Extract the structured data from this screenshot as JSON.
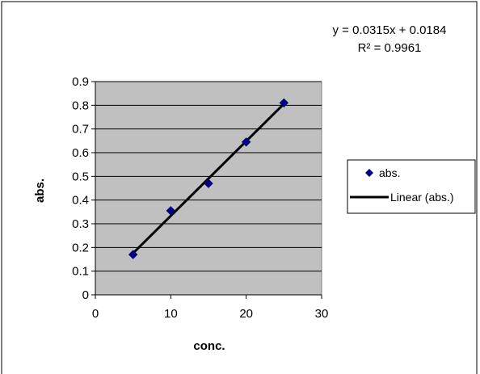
{
  "chart_data": {
    "type": "scatter",
    "title": "",
    "xlabel": "conc.",
    "ylabel": "abs.",
    "xlim": [
      0,
      30
    ],
    "ylim": [
      0,
      0.9
    ],
    "x_ticks": [
      "0",
      "10",
      "20",
      "30"
    ],
    "y_ticks": [
      "0",
      "0.1",
      "0.2",
      "0.3",
      "0.4",
      "0.5",
      "0.6",
      "0.7",
      "0.8",
      "0.9"
    ],
    "grid": "horizontal",
    "plot_background": "#c0c0c0",
    "legend_position": "right",
    "series": [
      {
        "name": "abs.",
        "marker": "diamond",
        "color": "#000080",
        "x": [
          5,
          10,
          15,
          20,
          25
        ],
        "y": [
          0.17,
          0.355,
          0.47,
          0.645,
          0.81
        ]
      }
    ],
    "trendline": {
      "name": "Linear (abs.)",
      "type": "linear",
      "color": "#000000",
      "slope": 0.0315,
      "intercept": 0.0184,
      "x_range": [
        5,
        25
      ],
      "equation_text": "y = 0.0315x + 0.0184",
      "r2_text": "R² = 0.9961"
    }
  }
}
